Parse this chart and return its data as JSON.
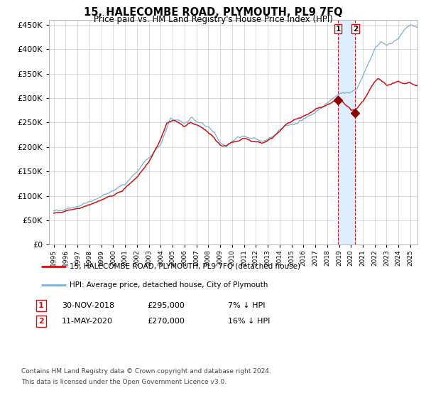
{
  "title": "15, HALECOMBE ROAD, PLYMOUTH, PL9 7FQ",
  "subtitle": "Price paid vs. HM Land Registry's House Price Index (HPI)",
  "legend_line1": "15, HALECOMBE ROAD, PLYMOUTH, PL9 7FQ (detached house)",
  "legend_line2": "HPI: Average price, detached house, City of Plymouth",
  "transaction1_date": "30-NOV-2018",
  "transaction1_price": "£295,000",
  "transaction1_hpi": "7% ↓ HPI",
  "transaction1_value": 295000,
  "transaction1_year": 2018.92,
  "transaction2_date": "11-MAY-2020",
  "transaction2_price": "£270,000",
  "transaction2_hpi": "16% ↓ HPI",
  "transaction2_value": 270000,
  "transaction2_year": 2020.37,
  "footnote1": "Contains HM Land Registry data © Crown copyright and database right 2024.",
  "footnote2": "This data is licensed under the Open Government Licence v3.0.",
  "hpi_color": "#7bafd4",
  "property_color": "#cc1111",
  "marker_color": "#880000",
  "vline_color": "#cc1111",
  "shade_color": "#ddeeff",
  "grid_color": "#cccccc",
  "bg_color": "#ffffff",
  "ylim_min": 0,
  "ylim_max": 460000,
  "ytick_step": 50000,
  "xlim_start": 1994.6,
  "xlim_end": 2025.6,
  "hpi_seed_base": 42,
  "prop_seed_base": 99
}
